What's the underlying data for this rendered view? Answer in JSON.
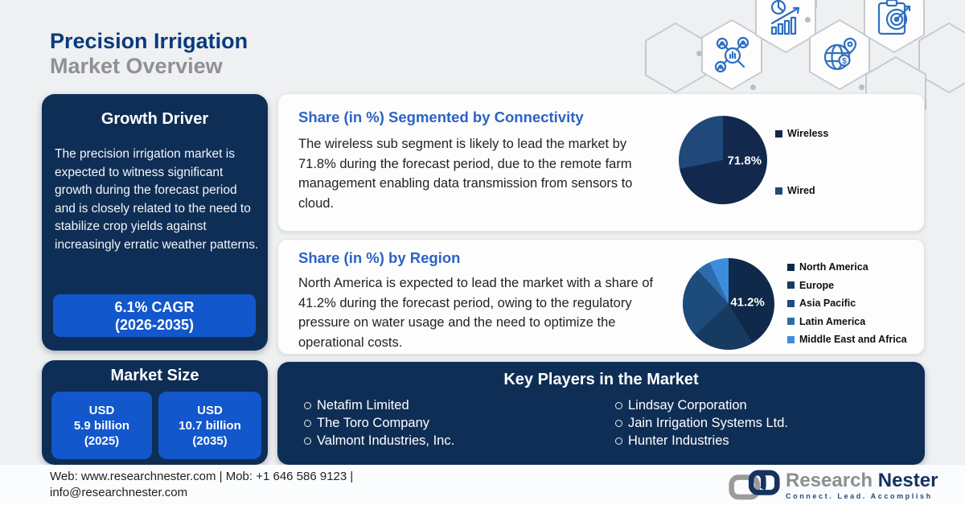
{
  "page": {
    "title_line1": "Precision Irrigation",
    "title_line2": "Market Overview"
  },
  "colors": {
    "navy_card": "#0f2e55",
    "accent_blue": "#1257cb",
    "heading_blue": "#2c63c4",
    "title_blue": "#0a3a7d",
    "title_gray": "#8f9093"
  },
  "decor_icons": [
    "research-network-icon",
    "growth-analytics-icon",
    "global-market-icon",
    "target-clipboard-icon"
  ],
  "growth_driver": {
    "title": "Growth Driver",
    "body": "The precision irrigation market is expected to witness significant growth during the forecast period and is closely related to the need to stabilize crop yields against increasingly erratic weather patterns.",
    "cagr_line1": "6.1% CAGR",
    "cagr_line2": "(2026-2035)"
  },
  "market_size": {
    "title": "Market Size",
    "boxes": [
      {
        "line1": "USD",
        "line2": "5.9 billion",
        "line3": "(2025)"
      },
      {
        "line1": "USD",
        "line2": "10.7 billion",
        "line3": "(2035)"
      }
    ]
  },
  "connectivity": {
    "heading": "Share (in %) Segmented by Connectivity",
    "body": "The wireless sub segment is likely to lead the market by 71.8% during the forecast period, due to the remote farm management enabling data transmission from sensors to cloud."
  },
  "region": {
    "heading": "Share (in %) by Region",
    "body": "North America is expected to lead the market with a share of 41.2% during the forecast period, owing to the regulatory pressure on water usage and the need to optimize the operational costs."
  },
  "key_players": {
    "title": "Key Players in the Market",
    "column1": [
      "Netafim Limited",
      "The Toro Company",
      "Valmont Industries, Inc."
    ],
    "column2": [
      "Lindsay Corporation",
      "Jain Irrigation Systems Ltd.",
      "Hunter Industries"
    ]
  },
  "footer": {
    "contact_line1": "Web: www.researchnester.com | Mob: +1 646 586 9123 |",
    "contact_line2": "info@researchnester.com",
    "logo_text1": "Research",
    "logo_text2": "Nester",
    "tagline": "Connect. Lead. Accomplish"
  },
  "chart_data": [
    {
      "type": "pie",
      "title": "Share (in %) Segmented by Connectivity",
      "labels": [
        "Wireless",
        "Wired"
      ],
      "values": [
        71.8,
        28.2
      ],
      "colors": [
        "#12294d",
        "#20497a"
      ],
      "annotation": "71.8%",
      "legend_position": "right",
      "start_angle_deg": 0,
      "direction": "clockwise"
    },
    {
      "type": "pie",
      "title": "Share (in %) by Region",
      "labels": [
        "North America",
        "Europe",
        "Asia Pacific",
        "Latin America",
        "Middle East and Africa"
      ],
      "values": [
        41.2,
        22.0,
        25.0,
        5.0,
        6.8
      ],
      "colors": [
        "#0e2949",
        "#173a61",
        "#1d4b7b",
        "#2d6cab",
        "#3e8ddc"
      ],
      "annotation": "41.2%",
      "legend_position": "right",
      "start_angle_deg": 0,
      "direction": "clockwise"
    }
  ]
}
